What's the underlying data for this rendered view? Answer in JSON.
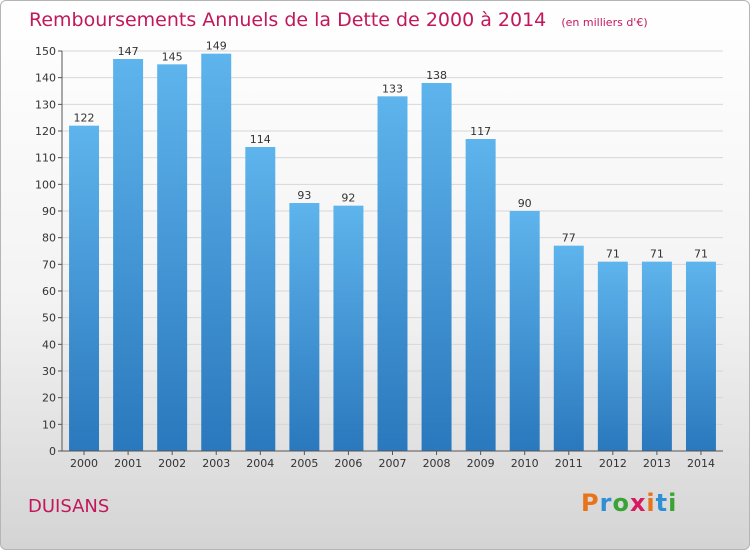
{
  "title": "Remboursements Annuels de la Dette de 2000 à 2014",
  "unit_note": "(en milliers d'€)",
  "location": "DUISANS",
  "logo": {
    "letters": [
      "P",
      "r",
      "o",
      "x",
      "i",
      "t",
      "i"
    ],
    "colors": [
      "#e8731a",
      "#2e8fd6",
      "#3aa335",
      "#d81b60",
      "#e8731a",
      "#2e8fd6",
      "#3aa335"
    ]
  },
  "colors": {
    "accent": "#c2185b",
    "bar_top": "#5eb4ec",
    "bar_bottom": "#2a78bd",
    "grid": "#d7d7d7"
  },
  "chart_data": {
    "type": "bar",
    "title": "Remboursements Annuels de la Dette de 2000 à 2014",
    "categories": [
      "2000",
      "2001",
      "2002",
      "2003",
      "2004",
      "2005",
      "2006",
      "2007",
      "2008",
      "2009",
      "2010",
      "2011",
      "2012",
      "2013",
      "2014"
    ],
    "values": [
      122,
      147,
      145,
      149,
      114,
      93,
      92,
      133,
      138,
      117,
      90,
      77,
      71,
      71,
      71
    ],
    "ylim": [
      0,
      150
    ],
    "yticks": [
      0,
      10,
      20,
      30,
      40,
      50,
      60,
      70,
      80,
      90,
      100,
      110,
      120,
      130,
      140,
      150
    ],
    "xlabel": "",
    "ylabel": "",
    "grid": true
  }
}
